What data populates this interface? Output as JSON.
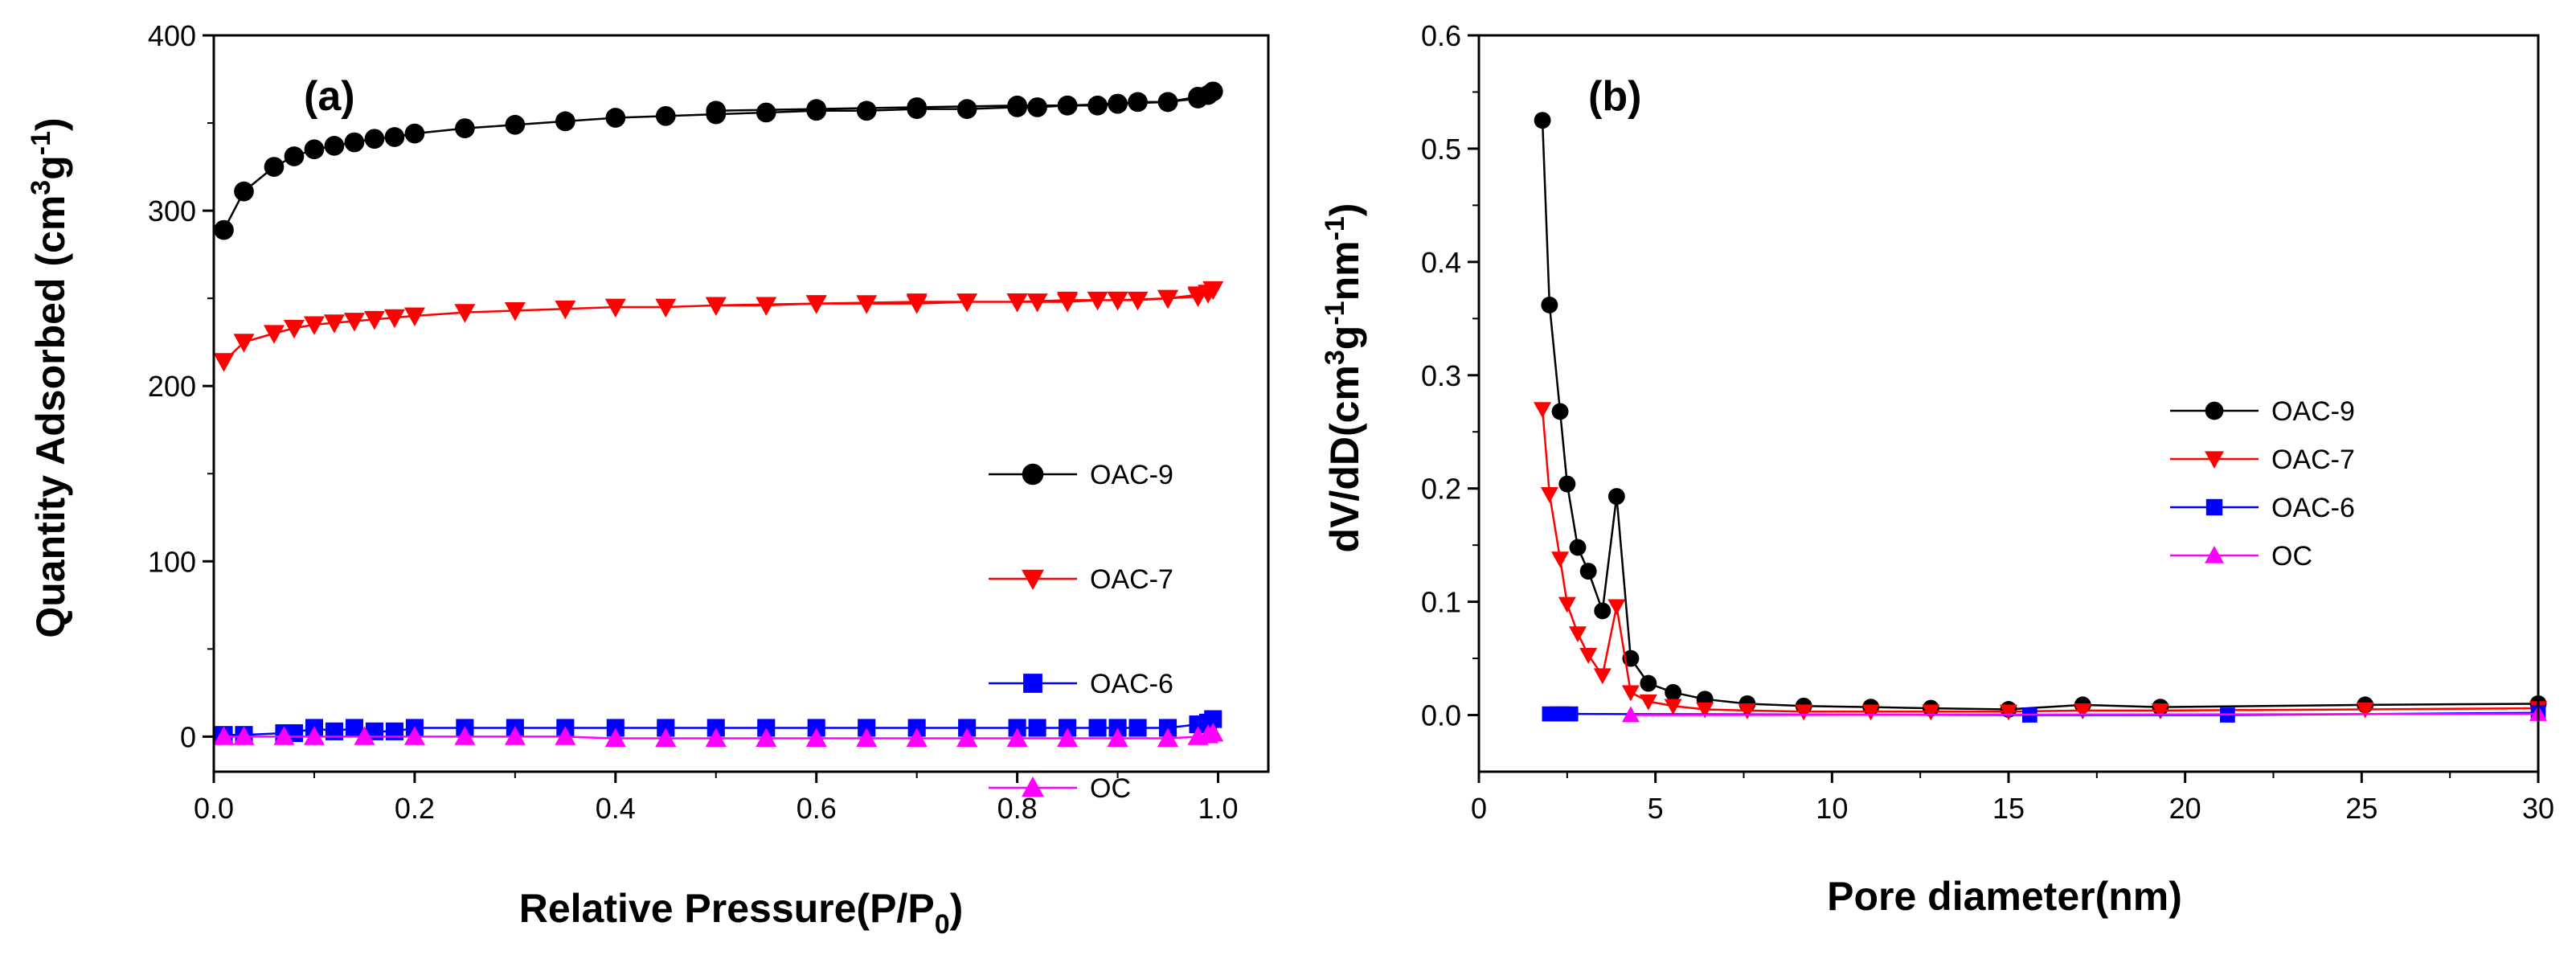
{
  "chart_data": [
    {
      "type": "line",
      "panel_label": "(a)",
      "xlabel": "Relative Pressure(P/P",
      "xlabel_sub": "0",
      "xlabel_tail": ")",
      "ylabel": "Quantity Adsorbed (cm",
      "ylabel_sup1": "3",
      "ylabel_mid": "g",
      "ylabel_sup2": "-1",
      "ylabel_tail": ")",
      "xlim": [
        0,
        1.05
      ],
      "ylim": [
        -20,
        400
      ],
      "xticks": [
        0.0,
        0.2,
        0.4,
        0.6,
        0.8,
        1.0
      ],
      "xtick_labels": [
        "0.0",
        "0.2",
        "0.4",
        "0.6",
        "0.8",
        "1.0"
      ],
      "yticks": [
        0,
        100,
        200,
        300,
        400
      ],
      "ytick_labels": [
        "0",
        "100",
        "200",
        "300",
        "400"
      ],
      "legend_position": "lower-right",
      "series": [
        {
          "name": "OAC-9",
          "color": "#000000",
          "marker": "circle",
          "x": [
            0.01,
            0.03,
            0.06,
            0.08,
            0.1,
            0.12,
            0.14,
            0.16,
            0.18,
            0.2,
            0.25,
            0.3,
            0.35,
            0.4,
            0.45,
            0.5,
            0.55,
            0.6,
            0.65,
            0.7,
            0.75,
            0.8,
            0.82,
            0.85,
            0.88,
            0.9,
            0.92,
            0.95,
            0.98,
            0.99,
            0.995,
            0.98,
            0.95,
            0.9,
            0.85,
            0.8,
            0.7,
            0.6,
            0.5
          ],
          "y": [
            289,
            311,
            325,
            331,
            335,
            337,
            339,
            341,
            342,
            344,
            347,
            349,
            351,
            353,
            354,
            355,
            356,
            357,
            357,
            358,
            358,
            359,
            359,
            360,
            360,
            361,
            362,
            362,
            364,
            366,
            368,
            365,
            362,
            361,
            360,
            360,
            359,
            358,
            357
          ]
        },
        {
          "name": "OAC-7",
          "color": "#ff0000",
          "marker": "triangle-down",
          "x": [
            0.01,
            0.03,
            0.06,
            0.08,
            0.1,
            0.12,
            0.14,
            0.16,
            0.18,
            0.2,
            0.25,
            0.3,
            0.35,
            0.4,
            0.45,
            0.5,
            0.55,
            0.6,
            0.65,
            0.7,
            0.75,
            0.8,
            0.82,
            0.85,
            0.88,
            0.9,
            0.92,
            0.95,
            0.98,
            0.99,
            0.995,
            0.98,
            0.95,
            0.9,
            0.85,
            0.8,
            0.7,
            0.6,
            0.5
          ],
          "y": [
            214,
            225,
            230,
            233,
            235,
            236,
            237,
            238,
            239,
            240,
            242,
            243,
            244,
            245,
            245,
            246,
            246,
            247,
            247,
            247,
            248,
            248,
            248,
            248,
            249,
            249,
            249,
            250,
            251,
            253,
            255,
            252,
            250,
            249,
            249,
            248,
            248,
            247,
            246
          ]
        },
        {
          "name": "OAC-6",
          "color": "#0000ff",
          "marker": "square",
          "x": [
            0.01,
            0.03,
            0.07,
            0.08,
            0.1,
            0.12,
            0.14,
            0.16,
            0.18,
            0.2,
            0.25,
            0.3,
            0.35,
            0.4,
            0.45,
            0.5,
            0.55,
            0.6,
            0.65,
            0.7,
            0.75,
            0.8,
            0.82,
            0.85,
            0.88,
            0.9,
            0.92,
            0.95,
            0.98,
            0.99,
            0.995
          ],
          "y": [
            1,
            1,
            2,
            2,
            5,
            3,
            5,
            3,
            3,
            5,
            5,
            5,
            5,
            5,
            5,
            5,
            5,
            5,
            5,
            5,
            5,
            5,
            5,
            5,
            5,
            5,
            5,
            5,
            7,
            8,
            10
          ]
        },
        {
          "name": "OC",
          "color": "#ff00ff",
          "marker": "triangle-up",
          "x": [
            0.01,
            0.03,
            0.07,
            0.1,
            0.15,
            0.2,
            0.25,
            0.3,
            0.35,
            0.4,
            0.45,
            0.5,
            0.55,
            0.6,
            0.65,
            0.7,
            0.75,
            0.8,
            0.85,
            0.9,
            0.95,
            0.98,
            0.99,
            0.995
          ],
          "y": [
            0,
            0,
            0,
            0,
            0,
            0,
            0,
            0,
            0,
            -1,
            -1,
            -1,
            -1,
            -1,
            -1,
            -1,
            -1,
            -1,
            -1,
            -1,
            -1,
            0,
            1,
            2
          ]
        }
      ]
    },
    {
      "type": "line",
      "panel_label": "(b)",
      "xlabel": "Pore diameter(nm)",
      "ylabel": "dV/dD(cm",
      "ylabel_sup1": "3",
      "ylabel_mid": "g",
      "ylabel_sup2": "-1",
      "ylabel_mid2": "nm",
      "ylabel_sup3": "-1",
      "ylabel_tail": ")",
      "xlim": [
        0,
        30
      ],
      "ylim": [
        -0.05,
        0.6
      ],
      "xticks": [
        0,
        5,
        10,
        15,
        20,
        25,
        30
      ],
      "xtick_labels": [
        "0",
        "5",
        "10",
        "15",
        "20",
        "25",
        "30"
      ],
      "yticks": [
        0.0,
        0.1,
        0.2,
        0.3,
        0.4,
        0.5,
        0.6
      ],
      "ytick_labels": [
        "0.0",
        "0.1",
        "0.2",
        "0.3",
        "0.4",
        "0.5",
        "0.6"
      ],
      "legend_position": "right",
      "series": [
        {
          "name": "OAC-9",
          "color": "#000000",
          "marker": "circle",
          "x": [
            1.8,
            2.0,
            2.3,
            2.5,
            2.8,
            3.1,
            3.5,
            3.9,
            4.3,
            4.8,
            5.5,
            6.4,
            7.6,
            9.2,
            11.1,
            12.8,
            15.0,
            17.1,
            19.3,
            25.1,
            30.0
          ],
          "y": [
            0.525,
            0.362,
            0.268,
            0.204,
            0.148,
            0.127,
            0.092,
            0.193,
            0.05,
            0.028,
            0.02,
            0.014,
            0.01,
            0.008,
            0.007,
            0.006,
            0.005,
            0.009,
            0.007,
            0.009,
            0.01
          ]
        },
        {
          "name": "OAC-7",
          "color": "#ff0000",
          "marker": "triangle-down",
          "x": [
            1.8,
            2.0,
            2.3,
            2.5,
            2.8,
            3.1,
            3.5,
            3.9,
            4.3,
            4.8,
            5.5,
            6.4,
            7.6,
            9.2,
            11.1,
            12.8,
            15.0,
            17.1,
            19.3,
            25.1,
            30.0
          ],
          "y": [
            0.27,
            0.195,
            0.138,
            0.098,
            0.072,
            0.053,
            0.035,
            0.096,
            0.02,
            0.012,
            0.008,
            0.005,
            0.004,
            0.003,
            0.003,
            0.003,
            0.003,
            0.004,
            0.004,
            0.005,
            0.006
          ]
        },
        {
          "name": "OAC-6",
          "color": "#0000ff",
          "marker": "square",
          "x": [
            2.0,
            2.2,
            2.4,
            2.6,
            15.6,
            21.2,
            30.0
          ],
          "y": [
            0.001,
            0.001,
            0.001,
            0.001,
            0.0,
            0.0,
            0.002
          ]
        },
        {
          "name": "OC",
          "color": "#ff00ff",
          "marker": "triangle-up",
          "x": [
            4.3,
            30.0
          ],
          "y": [
            0.0,
            0.001
          ]
        }
      ]
    }
  ]
}
